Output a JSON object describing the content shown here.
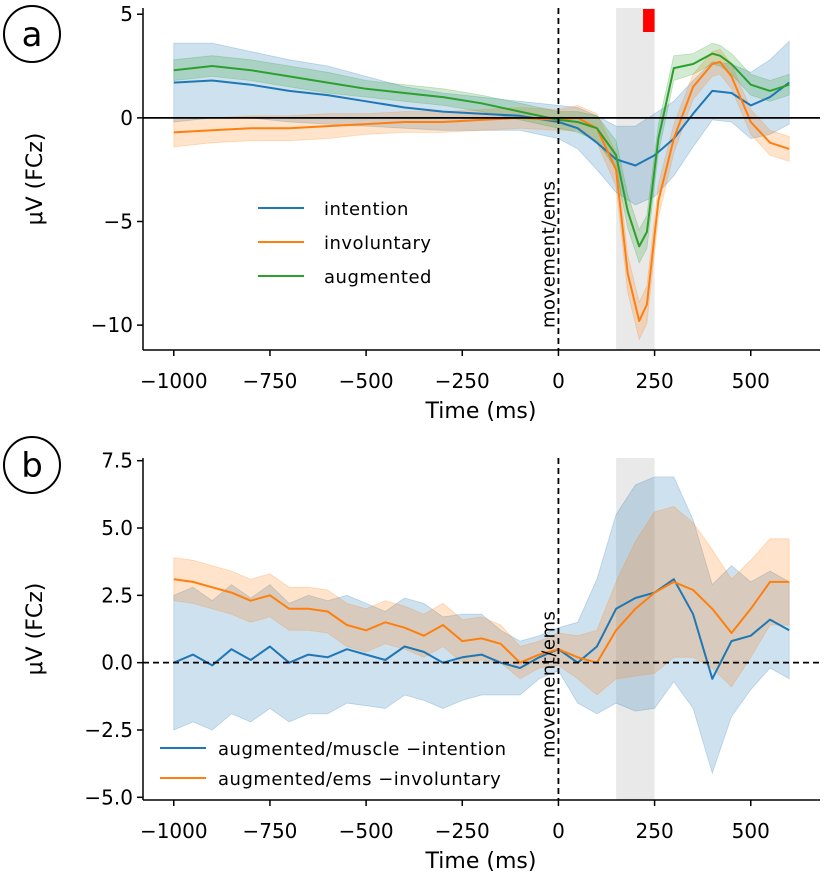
{
  "colors": {
    "blue": "#1f77b4",
    "orange": "#ff7f0e",
    "green": "#2ca02c",
    "red": "#ff0000",
    "shade": "#bfbfbf"
  },
  "chart_data": [
    {
      "panel_label": "a",
      "type": "line",
      "xlabel": "Time (ms)",
      "ylabel": "μV (FCz)",
      "xlim": [
        -1080,
        680
      ],
      "ylim": [
        -11.2,
        5.3
      ],
      "xticks": [
        -1000,
        -750,
        -500,
        -250,
        0,
        250,
        500
      ],
      "xtick_labels": [
        "−1000",
        "−750",
        "−500",
        "−250",
        "0",
        "250",
        "500"
      ],
      "yticks": [
        5,
        0,
        -5,
        -10
      ],
      "ytick_labels": [
        "5",
        "0",
        "−5",
        "−10"
      ],
      "vline_label": "movement/ems",
      "vline_x": 0,
      "hline_y": 0,
      "hline_style": "solid",
      "shaded_window": [
        150,
        250
      ],
      "significance_marker": [
        220,
        250
      ],
      "legend_position": "center-left",
      "series": [
        {
          "name": "intention",
          "color": "blue",
          "x": [
            -1000,
            -900,
            -800,
            -700,
            -600,
            -500,
            -400,
            -300,
            -200,
            -100,
            0,
            50,
            100,
            150,
            200,
            250,
            300,
            350,
            400,
            450,
            500,
            550,
            600
          ],
          "y": [
            1.7,
            1.8,
            1.6,
            1.3,
            1.1,
            0.8,
            0.5,
            0.3,
            0.2,
            0.1,
            -0.2,
            -0.5,
            -1.2,
            -2.0,
            -2.3,
            -1.8,
            -1.0,
            0.2,
            1.3,
            1.2,
            0.6,
            1.0,
            1.7
          ],
          "band": [
            1.9,
            1.8,
            1.6,
            1.5,
            1.4,
            1.2,
            1.0,
            0.9,
            0.8,
            0.7,
            0.8,
            1.0,
            1.3,
            1.6,
            1.9,
            2.0,
            1.8,
            1.6,
            1.4,
            1.4,
            1.6,
            1.8,
            2.0
          ]
        },
        {
          "name": "involuntary",
          "color": "orange",
          "x": [
            -1000,
            -900,
            -800,
            -700,
            -600,
            -500,
            -400,
            -300,
            -200,
            -100,
            0,
            50,
            100,
            150,
            180,
            210,
            230,
            260,
            300,
            350,
            400,
            420,
            450,
            500,
            550,
            600
          ],
          "y": [
            -0.7,
            -0.6,
            -0.5,
            -0.5,
            -0.4,
            -0.3,
            -0.2,
            -0.2,
            -0.1,
            0.0,
            -0.1,
            0.0,
            -0.5,
            -2.5,
            -7.5,
            -9.8,
            -9.0,
            -4.0,
            -1.0,
            1.5,
            2.6,
            2.7,
            2.0,
            -0.2,
            -1.2,
            -1.5
          ],
          "band": [
            0.7,
            0.6,
            0.6,
            0.6,
            0.6,
            0.5,
            0.5,
            0.5,
            0.5,
            0.5,
            0.5,
            0.6,
            0.7,
            0.8,
            0.9,
            0.9,
            0.9,
            0.8,
            0.7,
            0.6,
            0.6,
            0.6,
            0.6,
            0.6,
            0.6,
            0.6
          ]
        },
        {
          "name": "augmented",
          "color": "green",
          "x": [
            -1000,
            -900,
            -800,
            -700,
            -600,
            -500,
            -400,
            -300,
            -200,
            -100,
            0,
            50,
            100,
            150,
            180,
            210,
            230,
            260,
            300,
            350,
            400,
            420,
            450,
            500,
            550,
            600
          ],
          "y": [
            2.3,
            2.5,
            2.3,
            2.0,
            1.7,
            1.4,
            1.2,
            1.0,
            0.7,
            0.3,
            -0.1,
            -0.2,
            -0.5,
            -1.8,
            -4.5,
            -6.2,
            -5.5,
            -1.0,
            2.4,
            2.6,
            3.1,
            3.0,
            2.6,
            1.6,
            1.3,
            1.6
          ],
          "band": [
            0.5,
            0.5,
            0.5,
            0.5,
            0.5,
            0.4,
            0.4,
            0.4,
            0.4,
            0.4,
            0.4,
            0.5,
            0.6,
            0.7,
            0.8,
            0.8,
            0.8,
            0.7,
            0.6,
            0.5,
            0.5,
            0.5,
            0.5,
            0.5,
            0.5,
            0.5
          ]
        }
      ]
    },
    {
      "panel_label": "b",
      "type": "line",
      "xlabel": "Time (ms)",
      "ylabel": "μV (FCz)",
      "xlim": [
        -1080,
        680
      ],
      "ylim": [
        -5.1,
        7.6
      ],
      "xticks": [
        -1000,
        -750,
        -500,
        -250,
        0,
        250,
        500
      ],
      "xtick_labels": [
        "−1000",
        "−750",
        "−500",
        "−250",
        "0",
        "250",
        "500"
      ],
      "yticks": [
        7.5,
        5.0,
        2.5,
        0.0,
        -2.5,
        -5.0
      ],
      "ytick_labels": [
        "7.5",
        "5.0",
        "2.5",
        "0.0",
        "−2.5",
        "−5.0"
      ],
      "vline_label": "movement/ems",
      "vline_x": 0,
      "hline_y": 0,
      "hline_style": "dashed",
      "shaded_window": [
        150,
        250
      ],
      "legend_position": "lower-left",
      "series": [
        {
          "name": "augmented/muscle −intention",
          "color": "blue",
          "x": [
            -1000,
            -950,
            -900,
            -850,
            -800,
            -750,
            -700,
            -650,
            -600,
            -550,
            -500,
            -450,
            -400,
            -350,
            -300,
            -250,
            -200,
            -150,
            -100,
            -50,
            0,
            50,
            100,
            150,
            200,
            250,
            300,
            350,
            400,
            450,
            500,
            550,
            600
          ],
          "y": [
            0.0,
            0.3,
            -0.1,
            0.5,
            0.1,
            0.6,
            0.0,
            0.3,
            0.2,
            0.5,
            0.3,
            0.1,
            0.6,
            0.4,
            0.0,
            0.2,
            0.3,
            0.0,
            -0.2,
            0.2,
            0.5,
            0.0,
            0.6,
            2.0,
            2.4,
            2.6,
            3.1,
            1.8,
            -0.6,
            0.8,
            1.0,
            1.6,
            1.2
          ],
          "band": [
            2.5,
            2.5,
            2.4,
            2.4,
            2.3,
            2.3,
            2.2,
            2.2,
            2.1,
            2.0,
            1.9,
            1.8,
            1.8,
            1.8,
            1.7,
            1.6,
            1.5,
            1.2,
            1.0,
            0.8,
            0.8,
            1.5,
            2.5,
            3.5,
            4.2,
            4.3,
            3.8,
            3.5,
            3.5,
            2.8,
            2.0,
            1.8,
            1.8
          ]
        },
        {
          "name": "augmented/ems −involuntary",
          "color": "orange",
          "x": [
            -1000,
            -950,
            -900,
            -850,
            -800,
            -750,
            -700,
            -650,
            -600,
            -550,
            -500,
            -450,
            -400,
            -350,
            -300,
            -250,
            -200,
            -150,
            -100,
            -50,
            0,
            50,
            100,
            150,
            200,
            250,
            300,
            350,
            400,
            450,
            500,
            550,
            600
          ],
          "y": [
            3.1,
            3.0,
            2.8,
            2.6,
            2.3,
            2.5,
            2.0,
            2.0,
            1.9,
            1.4,
            1.2,
            1.5,
            1.3,
            1.0,
            1.4,
            0.8,
            0.9,
            0.7,
            0.0,
            0.3,
            0.5,
            0.2,
            0.0,
            1.2,
            2.0,
            2.6,
            3.0,
            2.7,
            2.0,
            1.1,
            2.0,
            3.0,
            3.0
          ],
          "band": [
            0.8,
            0.8,
            0.8,
            0.8,
            0.8,
            0.8,
            0.8,
            0.8,
            0.8,
            0.8,
            0.8,
            0.8,
            0.8,
            0.8,
            0.8,
            0.8,
            0.8,
            0.7,
            0.6,
            0.5,
            0.6,
            0.8,
            1.2,
            1.8,
            2.5,
            3.0,
            2.8,
            2.5,
            2.2,
            2.0,
            1.8,
            1.6,
            1.6
          ]
        }
      ]
    }
  ]
}
